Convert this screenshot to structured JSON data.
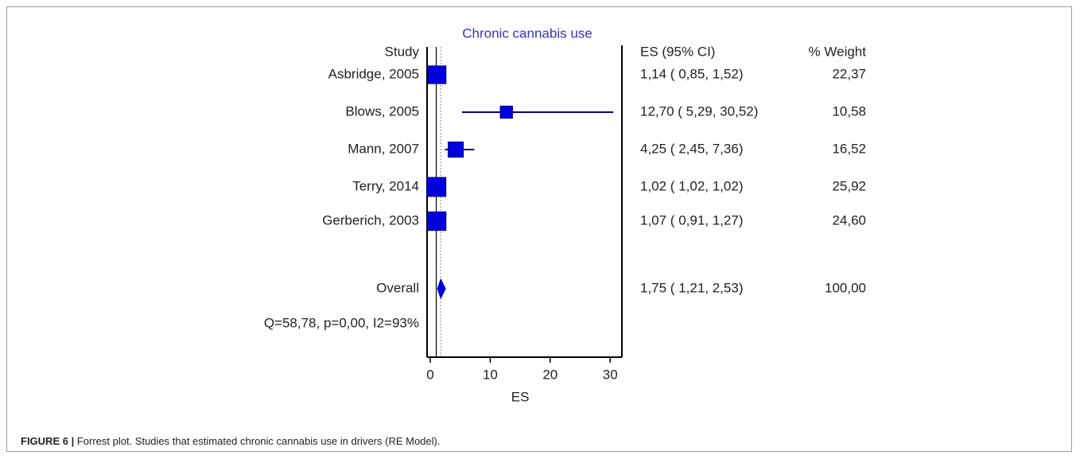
{
  "chart_data": {
    "type": "forest",
    "title": "Chronic cannabis use",
    "xlabel": "ES",
    "xlim": [
      0,
      30.5
    ],
    "xticks": [
      0,
      10,
      20,
      30
    ],
    "null_line": 1,
    "headers": {
      "study": "Study",
      "es_ci": "ES (95% CI)",
      "weight": "% Weight"
    },
    "studies": [
      {
        "label": "Asbridge, 2005",
        "es": 1.14,
        "lo": 0.85,
        "hi": 1.52,
        "es_text": "1,14",
        "lo_text": "0,85",
        "hi_text": "1,52",
        "weight": 22.37,
        "weight_text": "22,37"
      },
      {
        "label": "Blows, 2005",
        "es": 12.7,
        "lo": 5.29,
        "hi": 30.52,
        "es_text": "12,70",
        "lo_text": "5,29",
        "hi_text": "30,52",
        "weight": 10.58,
        "weight_text": "10,58"
      },
      {
        "label": "Mann, 2007",
        "es": 4.25,
        "lo": 2.45,
        "hi": 7.36,
        "es_text": "4,25",
        "lo_text": "2,45",
        "hi_text": "7,36",
        "weight": 16.52,
        "weight_text": "16,52"
      },
      {
        "label": "Terry, 2014",
        "es": 1.02,
        "lo": 1.02,
        "hi": 1.02,
        "es_text": "1,02",
        "lo_text": "1,02",
        "hi_text": "1,02",
        "weight": 25.92,
        "weight_text": "25,92"
      },
      {
        "label": "Gerberich, 2003",
        "es": 1.07,
        "lo": 0.91,
        "hi": 1.27,
        "es_text": "1,07",
        "lo_text": "0,91",
        "hi_text": "1,27",
        "weight": 24.6,
        "weight_text": "24,60"
      }
    ],
    "overall": {
      "label": "Overall",
      "es": 1.75,
      "lo": 1.21,
      "hi": 2.53,
      "es_text": "1,75",
      "lo_text": "1,21",
      "hi_text": "2,53",
      "weight_text": "100,00"
    },
    "heterogeneity": "Q=58,78, p=0,00, I2=93%",
    "colors": {
      "marker": "#0000dd",
      "ci_line": "#00008b",
      "title": "#3333cc",
      "axis": "#000000",
      "text": "#222222"
    }
  },
  "caption": {
    "label": "FIGURE 6 |",
    "text": " Forrest plot. Studies that estimated chronic cannabis use in drivers (RE Model)."
  }
}
